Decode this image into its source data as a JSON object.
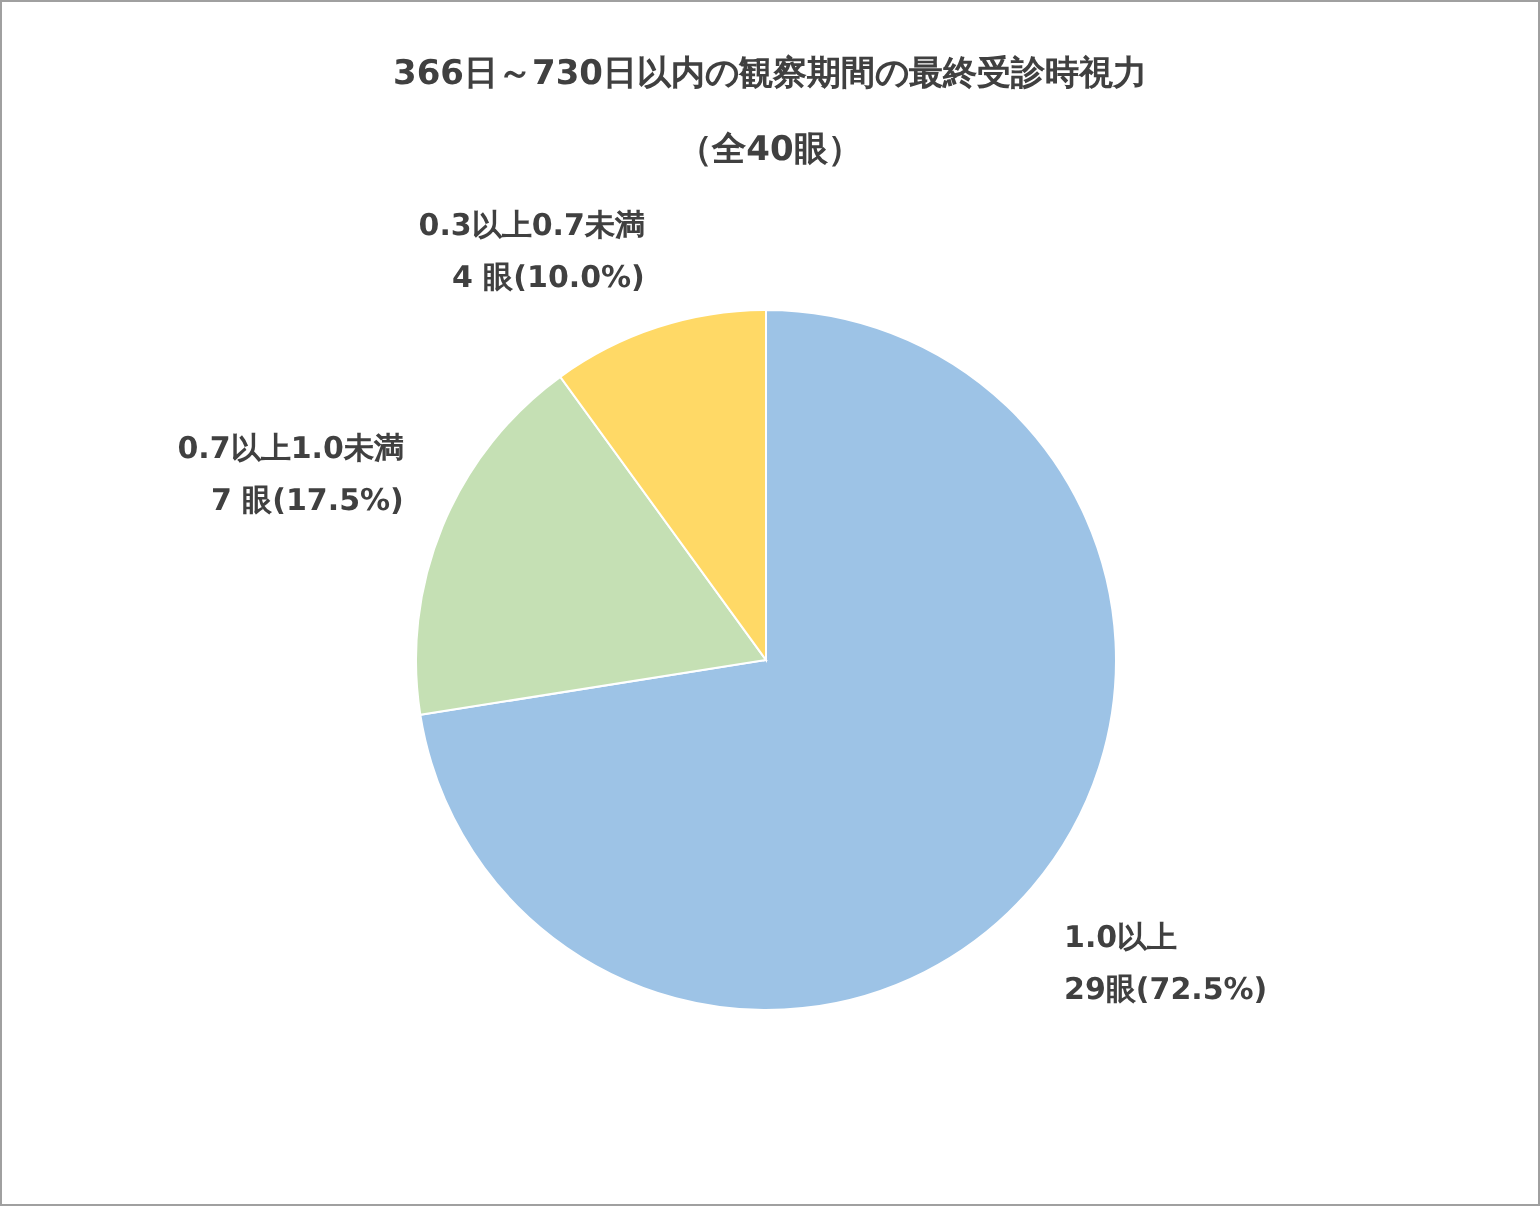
{
  "chart_data": {
    "type": "pie",
    "title": "366日～730日以内の観察期間の最終受診時視力",
    "subtitle": "（全40眼）",
    "categories": [
      "1.0以上",
      "0.7以上1.0未満",
      "0.3以上0.7未満"
    ],
    "values": [
      29,
      7,
      4
    ],
    "colors": [
      "#9dc3e6",
      "#c5e0b4",
      "#ffd966"
    ],
    "value_labels": [
      "29眼(72.5%)",
      "7 眼(17.5%)",
      "4 眼(10.0%)"
    ],
    "legend": false
  }
}
